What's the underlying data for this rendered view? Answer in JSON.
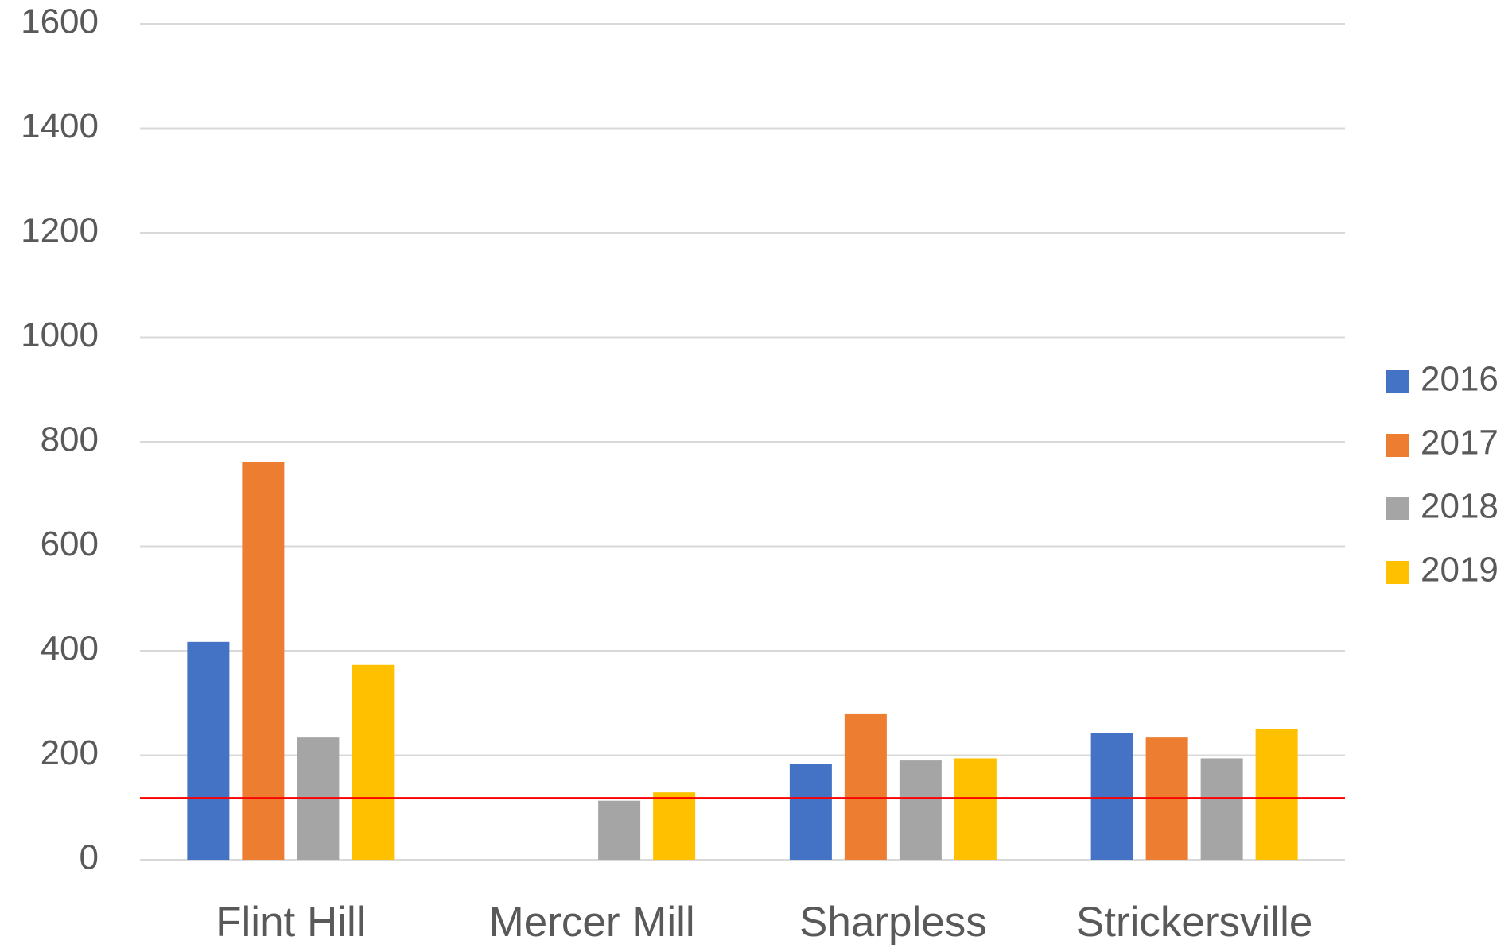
{
  "chart_data": {
    "type": "bar",
    "categories": [
      "Flint Hill",
      "Mercer Mill",
      "Sharpless",
      "Strickersville"
    ],
    "series": [
      {
        "name": "2016",
        "color": "#4472c4",
        "values": [
          417,
          null,
          183,
          242
        ]
      },
      {
        "name": "2017",
        "color": "#ed7d31",
        "values": [
          762,
          null,
          280,
          234
        ]
      },
      {
        "name": "2018",
        "color": "#a5a5a5",
        "values": [
          234,
          113,
          190,
          194
        ]
      },
      {
        "name": "2019",
        "color": "#ffc000",
        "values": [
          373,
          129,
          194,
          251
        ]
      }
    ],
    "ylim": [
      0,
      1600
    ],
    "yticks": [
      0,
      200,
      400,
      600,
      800,
      1000,
      1200,
      1400,
      1600
    ],
    "grid": true,
    "legend": "right",
    "reference_line": {
      "value": 118,
      "color": "#ff0000"
    }
  }
}
